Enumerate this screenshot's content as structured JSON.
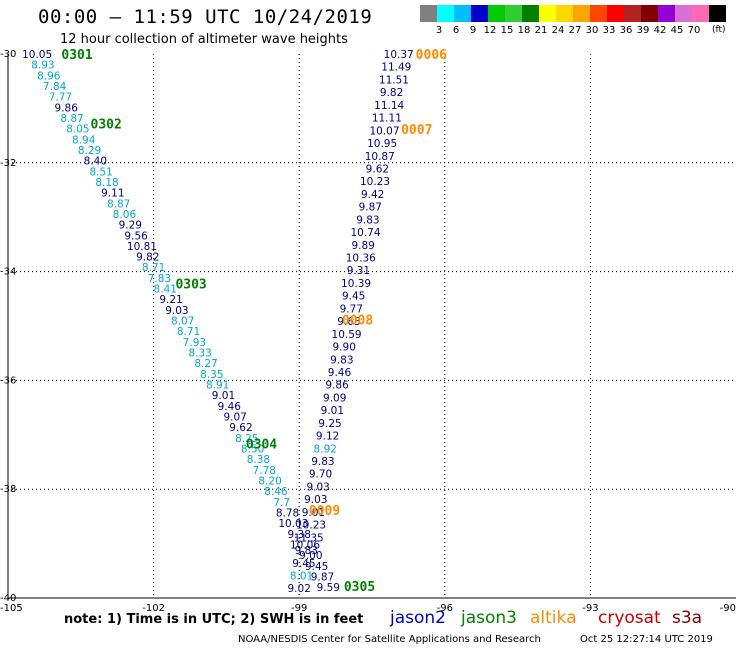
{
  "header": {
    "title": "00:00 – 11:59 UTC 10/24/2019",
    "subtitle": "12 hour collection of altimeter wave heights"
  },
  "legend": {
    "unit": "(ft)",
    "ticks": [
      "3",
      "6",
      "9",
      "12",
      "15",
      "18",
      "21",
      "24",
      "27",
      "30",
      "33",
      "36",
      "39",
      "42",
      "45",
      "70"
    ],
    "colors": [
      "#808080",
      "#00ffff",
      "#00bfff",
      "#0000cd",
      "#00cc00",
      "#32cd32",
      "#008000",
      "#ffff00",
      "#ffd700",
      "#ffa500",
      "#ff4500",
      "#ff0000",
      "#b22222",
      "#800000",
      "#9400d3",
      "#da70d6",
      "#ff69b4",
      "#000000"
    ]
  },
  "footer": {
    "note": "note: 1) Time is in UTC; 2) SWH is in feet",
    "satellites": [
      {
        "name": "jason2",
        "color": "#0000cd"
      },
      {
        "name": "jason3",
        "color": "#008000"
      },
      {
        "name": "altika",
        "color": "#ff8c00"
      },
      {
        "name": "cryosat",
        "color": "#cc0000"
      },
      {
        "name": "s3a",
        "color": "#800000"
      }
    ],
    "credit": "NOAA/NESDIS Center for Satellite Applications and Research",
    "timestamp": "Oct 25 12:27:14 UTC 2019"
  },
  "map": {
    "lon_ticks": [
      "-105",
      "-102",
      "-99",
      "-96",
      "-93",
      "-90"
    ],
    "lat_ticks": [
      "-30",
      "-32",
      "-34",
      "-36",
      "-38",
      "-40"
    ],
    "colors": {
      "grid": "#000000",
      "jason2": "#00008b",
      "jason3_light": "#00a8d8",
      "jason3_time": "#008000",
      "altika": "#ff8c00"
    },
    "time_labels": [
      {
        "text": "0301",
        "lon": -103.9,
        "lat": -30.0,
        "sat": "jason3"
      },
      {
        "text": "0302",
        "lon": -103.3,
        "lat": -31.28,
        "sat": "jason3"
      },
      {
        "text": "0303",
        "lon": -101.55,
        "lat": -34.22,
        "sat": "jason3"
      },
      {
        "text": "0304",
        "lon": -100.1,
        "lat": -37.16,
        "sat": "jason3"
      },
      {
        "text": "0305",
        "lon": -98.08,
        "lat": -39.78,
        "sat": "jason3"
      },
      {
        "text": "0006",
        "lon": -96.6,
        "lat": -30.0,
        "sat": "altika"
      },
      {
        "text": "0007",
        "lon": -96.9,
        "lat": -31.38,
        "sat": "altika"
      },
      {
        "text": "0008",
        "lon": -98.12,
        "lat": -34.88,
        "sat": "altika"
      },
      {
        "text": "0009",
        "lon": -98.8,
        "lat": -38.38,
        "sat": "altika"
      }
    ],
    "tracks": [
      {
        "sat": "jason3",
        "lon_start": -104.4,
        "lat_start": -30.0,
        "lon_end": -98.4,
        "lat_end": -39.8,
        "values": [
          "10.05",
          "8.93",
          "8.96",
          "7.84",
          "7.77",
          "9.86",
          "8.87",
          "8.05",
          "8.94",
          "8.29",
          "8.40",
          "8.51",
          "8.18",
          "9.11",
          "8.87",
          "8.06",
          "9.29",
          "9.56",
          "10.81",
          "9.82",
          "8.71",
          "7.83",
          "8.41",
          "9.21",
          "9.03",
          "8.07",
          "8.71",
          "7.93",
          "8.33",
          "8.27",
          "8.35",
          "8.91",
          "9.01",
          "9.46",
          "9.07",
          "9.62",
          "8.25",
          "8.50",
          "8.38",
          "7.78",
          "8.20",
          "8.46",
          "7.7",
          "8.78",
          "10.03",
          "9.38",
          "10.06",
          "9.00",
          "9.45",
          "9.87",
          "9.59"
        ],
        "dark": [
          0,
          5,
          10,
          13,
          16,
          17,
          18,
          19,
          23,
          24,
          32,
          33,
          34,
          35,
          43,
          44,
          45,
          46,
          47,
          48,
          49,
          50
        ]
      },
      {
        "sat": "altika",
        "lon_start": -96.95,
        "lat_start": -30.0,
        "lon_end": -99.0,
        "lat_end": -39.82,
        "values": [
          "10.37",
          "11.49",
          "11.51",
          "9.82",
          "11.14",
          "11.11",
          "10.07",
          "10.95",
          "10.87",
          "9.62",
          "10.23",
          "9.42",
          "9.87",
          "9.83",
          "10.74",
          "9.89",
          "10.36",
          "9.31",
          "10.39",
          "9.45",
          "9.77",
          "9.63",
          "10.59",
          "9.90",
          "9.83",
          "9.46",
          "9.86",
          "9.09",
          "9.01",
          "9.25",
          "9.12",
          "8.92",
          "9.83",
          "9.70",
          "9.03",
          "9.03",
          "9.01",
          "10.23",
          "11.35",
          "9.83",
          "9.45",
          "8.01",
          "9.02"
        ],
        "light": [
          31,
          41
        ]
      }
    ]
  }
}
